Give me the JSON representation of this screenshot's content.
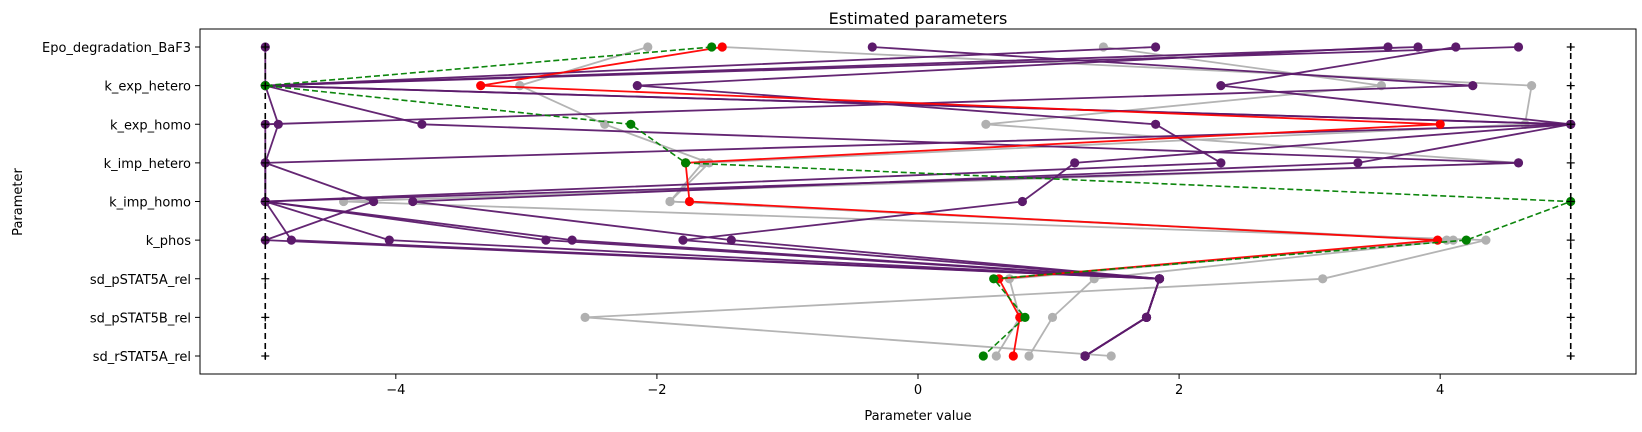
{
  "chart_data": {
    "type": "line",
    "title": "Estimated parameters",
    "xlabel": "Parameter value",
    "ylabel": "Parameter",
    "xlim": [
      -5.5,
      5.5
    ],
    "xticks": [
      -4,
      -2,
      0,
      2,
      4
    ],
    "xtick_labels": [
      "−4",
      "−2",
      "0",
      "2",
      "4"
    ],
    "parameters": [
      "Epo_degradation_BaF3",
      "k_exp_hetero",
      "k_exp_homo",
      "k_imp_hetero",
      "k_imp_homo",
      "k_phos",
      "sd_pSTAT5A_rel",
      "sd_pSTAT5B_rel",
      "sd_rSTAT5A_rel"
    ],
    "bounds": {
      "lower": -5,
      "upper": 5
    },
    "bound_color": "#000000",
    "series": [
      {
        "color": "#b0b0b0",
        "dashed": false,
        "values": [
          -2.07,
          -3.05,
          -2.4,
          -1.6,
          -1.9,
          4.1,
          1.35,
          1.03,
          0.85
        ]
      },
      {
        "color": "#b0b0b0",
        "dashed": false,
        "values": [
          1.42,
          3.55,
          0.52,
          4.6,
          -4.4,
          4.35,
          3.1,
          -2.55,
          1.48
        ]
      },
      {
        "color": "#b0b0b0",
        "dashed": false,
        "values": [
          -1.5,
          4.7,
          4.65,
          -1.65,
          -1.9,
          4.05,
          0.7,
          0.78,
          0.6
        ]
      },
      {
        "color": "#5c1a6b",
        "dashed": false,
        "values": [
          -0.35,
          4.25,
          -5,
          -5,
          -5,
          -2.65,
          1.85,
          1.75,
          1.28
        ]
      },
      {
        "color": "#5c1a6b",
        "dashed": false,
        "values": [
          1.82,
          -5,
          -4.9,
          -5,
          -5,
          -4.8,
          1.85,
          1.75,
          1.28
        ]
      },
      {
        "color": "#5c1a6b",
        "dashed": false,
        "values": [
          3.6,
          -2.15,
          1.82,
          2.32,
          -5,
          -2.85,
          1.85,
          1.75,
          1.28
        ]
      },
      {
        "color": "#5c1a6b",
        "dashed": false,
        "values": [
          3.83,
          -5,
          -3.8,
          4.6,
          -5,
          -4.05,
          1.85,
          1.75,
          1.28
        ]
      },
      {
        "color": "#5c1a6b",
        "dashed": false,
        "values": [
          4.12,
          2.32,
          5,
          1.2,
          0.8,
          -1.8,
          1.85,
          1.75,
          1.28
        ]
      },
      {
        "color": "#5c1a6b",
        "dashed": false,
        "values": [
          4.6,
          -5,
          5,
          3.37,
          -3.87,
          -1.43,
          1.85,
          1.75,
          1.28
        ]
      },
      {
        "color": "#5c1a6b",
        "dashed": false,
        "values": [
          -5,
          -5,
          5,
          -5,
          -4.17,
          -5,
          1.85,
          1.75,
          1.28
        ]
      },
      {
        "color": "#ff0000",
        "dashed": false,
        "values": [
          -1.5,
          -3.35,
          4,
          -1.78,
          -1.75,
          3.98,
          0.62,
          0.78,
          0.73
        ]
      },
      {
        "color": "#008000",
        "dashed": true,
        "values": [
          -1.58,
          -5,
          -2.2,
          -1.78,
          5,
          4.2,
          0.58,
          0.82,
          0.5
        ]
      }
    ]
  }
}
